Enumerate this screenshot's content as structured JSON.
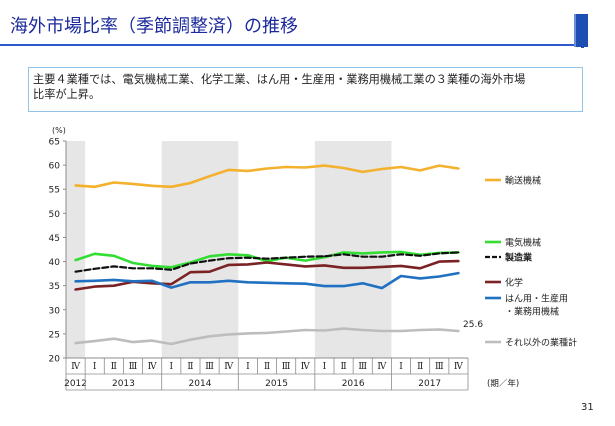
{
  "slide": {
    "title": "海外市場比率（季節調整済）の推移",
    "summary_line1": "主要４業種では、電気機械工業、化学工業、はん用・生産用・業務用機械工業の３業種の海外市場",
    "summary_line2": "比率が上昇。",
    "page_number": "31",
    "colors": {
      "title": "#1b2a9c",
      "rule": "#2b57c9",
      "summary_border": "#93c5e8"
    }
  },
  "chart_data": {
    "type": "line",
    "ylabel": "(%)",
    "xlabel": "(期／年)",
    "ylim": [
      20,
      65
    ],
    "ytick_step": 5,
    "grid": false,
    "legend_placement": "right",
    "shaded_years": [
      "2012",
      "2014",
      "2016"
    ],
    "quarters": [
      "Ⅳ",
      "Ⅰ",
      "Ⅱ",
      "Ⅲ",
      "Ⅳ",
      "Ⅰ",
      "Ⅱ",
      "Ⅲ",
      "Ⅳ",
      "Ⅰ",
      "Ⅱ",
      "Ⅲ",
      "Ⅳ",
      "Ⅰ",
      "Ⅱ",
      "Ⅲ",
      "Ⅳ",
      "Ⅰ",
      "Ⅱ",
      "Ⅲ",
      "Ⅳ"
    ],
    "years": [
      {
        "label": "2012",
        "start": 0,
        "end": 0
      },
      {
        "label": "2013",
        "start": 1,
        "end": 4
      },
      {
        "label": "2014",
        "start": 5,
        "end": 8
      },
      {
        "label": "2015",
        "start": 9,
        "end": 12
      },
      {
        "label": "2016",
        "start": 13,
        "end": 16
      },
      {
        "label": "2017",
        "start": 17,
        "end": 20
      }
    ],
    "series": [
      {
        "name": "輸送機械",
        "color": "#f3b12d",
        "dash": false,
        "bold": false,
        "values": [
          55.8,
          55.5,
          56.4,
          56.1,
          55.7,
          55.5,
          56.3,
          57.7,
          59.0,
          58.8,
          59.3,
          59.6,
          59.5,
          59.9,
          59.4,
          58.6,
          59.2,
          59.6,
          58.9,
          59.9,
          59.3
        ]
      },
      {
        "name": "電気機械",
        "color": "#33dd33",
        "dash": false,
        "bold": false,
        "values": [
          40.3,
          41.6,
          41.2,
          39.7,
          39.1,
          38.8,
          39.8,
          41.1,
          41.5,
          41.3,
          40.1,
          40.8,
          40.2,
          40.9,
          41.9,
          41.7,
          41.9,
          42.0,
          41.4,
          41.8,
          41.9
        ]
      },
      {
        "name": "製造業",
        "color": "#111111",
        "dash": true,
        "bold": true,
        "values": [
          37.9,
          38.5,
          39.0,
          38.6,
          38.6,
          38.3,
          39.6,
          40.2,
          40.7,
          40.8,
          40.6,
          40.8,
          41.0,
          41.1,
          41.5,
          41.0,
          41.0,
          41.5,
          41.2,
          41.7,
          41.9
        ]
      },
      {
        "name": "化学",
        "color": "#7a2224",
        "dash": false,
        "bold": false,
        "values": [
          34.2,
          34.8,
          35.0,
          35.8,
          35.5,
          35.3,
          37.8,
          37.9,
          39.3,
          39.4,
          39.8,
          39.4,
          39.0,
          39.2,
          38.7,
          38.7,
          38.9,
          39.1,
          38.6,
          40.0,
          40.1
        ]
      },
      {
        "name": "はん用・生産用・業務用機械",
        "color": "#2071c1",
        "dash": false,
        "bold": false,
        "values": [
          35.9,
          36.0,
          36.2,
          35.9,
          36.0,
          34.6,
          35.7,
          35.7,
          36.0,
          35.7,
          35.6,
          35.5,
          35.4,
          34.9,
          34.9,
          35.5,
          34.5,
          37.0,
          36.5,
          36.9,
          37.6
        ]
      },
      {
        "name": "それ以外の業種計",
        "color": "#bdbdbd",
        "dash": false,
        "bold": false,
        "values": [
          23.1,
          23.5,
          24.0,
          23.3,
          23.6,
          22.9,
          23.8,
          24.5,
          24.9,
          25.1,
          25.2,
          25.5,
          25.8,
          25.7,
          26.1,
          25.8,
          25.6,
          25.6,
          25.8,
          25.9,
          25.6
        ]
      }
    ],
    "annotations": [
      {
        "series": "それ以外の業種計",
        "index": 20,
        "text": "25.6"
      }
    ],
    "legend": [
      {
        "series": "輸送機械",
        "lines": [
          "輸送機械"
        ]
      },
      {
        "series": "電気機械",
        "lines": [
          "電気機械"
        ]
      },
      {
        "series": "製造業",
        "lines": [
          "製造業"
        ]
      },
      {
        "series": "化学",
        "lines": [
          "化学"
        ]
      },
      {
        "series": "はん用・生産用・業務用機械",
        "lines": [
          "はん用・生産用",
          "・業務用機械"
        ]
      },
      {
        "series": "それ以外の業種計",
        "lines": [
          "それ以外の業種計"
        ]
      }
    ]
  }
}
